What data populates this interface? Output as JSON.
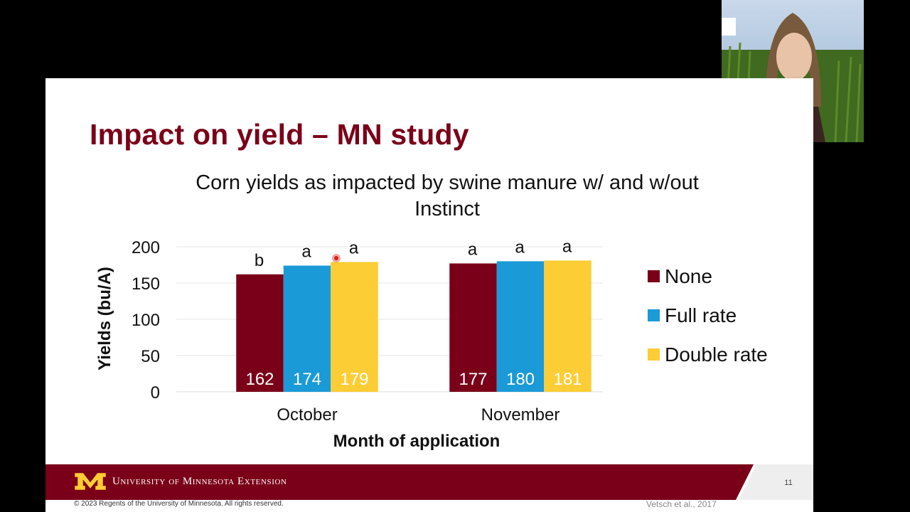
{
  "slide": {
    "title": "Impact on yield – MN study",
    "slide_number": "11",
    "citation": "Vetsch et al., 2017",
    "footer_brand": "University of Minnesota Extension",
    "copyright": "© 2023 Regents of the University of Minnesota. All rights reserved."
  },
  "colors": {
    "accent": "#7a0019",
    "gold": "#ffcc33",
    "none_series": "#7a0019",
    "full_series": "#1a9ad6",
    "double_series": "#fccd35"
  },
  "chart_data": {
    "type": "bar",
    "title": "Corn yields as impacted by swine manure w/ and w/out Instinct",
    "xlabel": "Month of application",
    "ylabel": "Yields (bu/A)",
    "categories": [
      "October",
      "November"
    ],
    "ylim": [
      0,
      200
    ],
    "yticks": [
      0,
      50,
      100,
      150,
      200
    ],
    "grid": true,
    "legend_position": "right",
    "series": [
      {
        "name": "None",
        "color": "#7a0019",
        "values": [
          162,
          177
        ],
        "letters": [
          "b",
          "a"
        ]
      },
      {
        "name": "Full rate",
        "color": "#1a9ad6",
        "values": [
          174,
          180
        ],
        "letters": [
          "a",
          "a"
        ]
      },
      {
        "name": "Double rate",
        "color": "#fccd35",
        "values": [
          179,
          181
        ],
        "letters": [
          "a",
          "a"
        ]
      }
    ]
  }
}
